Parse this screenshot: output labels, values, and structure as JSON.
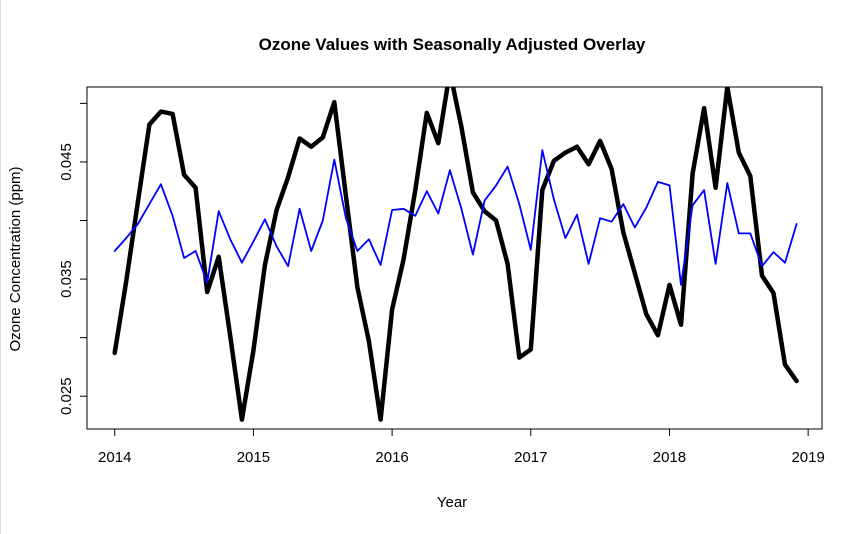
{
  "chart_data": {
    "type": "line",
    "title": "Ozone Values with Seasonally Adjusted Overlay",
    "xlabel": "Year",
    "ylabel": "Ozone Concentration (ppm)",
    "xlim": [
      2013.8,
      2019.1
    ],
    "ylim": [
      0.0222,
      0.0514
    ],
    "x_ticks": [
      2014,
      2015,
      2016,
      2017,
      2018,
      2019
    ],
    "x_tick_labels": [
      "2014",
      "2015",
      "2016",
      "2017",
      "2018",
      "2019"
    ],
    "y_ticks": [
      0.025,
      0.03,
      0.035,
      0.04,
      0.045,
      0.05
    ],
    "y_tick_labels": [
      "0.025",
      "",
      "0.035",
      "",
      "0.045",
      ""
    ],
    "grid": false,
    "x": [
      2014.0,
      2014.083,
      2014.167,
      2014.25,
      2014.333,
      2014.417,
      2014.5,
      2014.583,
      2014.667,
      2014.75,
      2014.833,
      2014.917,
      2015.0,
      2015.083,
      2015.167,
      2015.25,
      2015.333,
      2015.417,
      2015.5,
      2015.583,
      2015.667,
      2015.75,
      2015.833,
      2015.917,
      2016.0,
      2016.083,
      2016.167,
      2016.25,
      2016.333,
      2016.417,
      2016.5,
      2016.583,
      2016.667,
      2016.75,
      2016.833,
      2016.917,
      2017.0,
      2017.083,
      2017.167,
      2017.25,
      2017.333,
      2017.417,
      2017.5,
      2017.583,
      2017.667,
      2017.75,
      2017.833,
      2017.917,
      2018.0,
      2018.083,
      2018.167,
      2018.25,
      2018.333,
      2018.417,
      2018.5,
      2018.583,
      2018.667,
      2018.75,
      2018.833,
      2018.917
    ],
    "series": [
      {
        "color": "#000000",
        "width": 4.5,
        "values": [
          0.0287,
          0.0348,
          0.0416,
          0.0482,
          0.0493,
          0.0491,
          0.0439,
          0.0428,
          0.0339,
          0.0369,
          0.0301,
          0.023,
          0.0289,
          0.0362,
          0.0409,
          0.0437,
          0.047,
          0.0463,
          0.0471,
          0.0501,
          0.0421,
          0.0343,
          0.0297,
          0.023,
          0.0324,
          0.0367,
          0.0426,
          0.0492,
          0.0466,
          0.0527,
          0.048,
          0.0424,
          0.0408,
          0.04,
          0.0363,
          0.0283,
          0.029,
          0.0426,
          0.0451,
          0.0458,
          0.0463,
          0.0448,
          0.0468,
          0.0444,
          0.039,
          0.0355,
          0.032,
          0.0302,
          0.0345,
          0.0311,
          0.044,
          0.0496,
          0.0428,
          0.0514,
          0.0458,
          0.0438,
          0.0353,
          0.0338,
          0.0277,
          0.0263
        ]
      },
      {
        "color": "#0000ff",
        "width": 1.8,
        "values": [
          0.0374,
          0.0385,
          0.0397,
          0.0414,
          0.0431,
          0.0404,
          0.0368,
          0.0374,
          0.0347,
          0.0408,
          0.0384,
          0.0364,
          0.0382,
          0.0401,
          0.0378,
          0.0361,
          0.041,
          0.0374,
          0.04,
          0.0452,
          0.0402,
          0.0374,
          0.0384,
          0.0362,
          0.0409,
          0.041,
          0.0404,
          0.0425,
          0.0406,
          0.0443,
          0.041,
          0.0371,
          0.0417,
          0.043,
          0.0446,
          0.0414,
          0.0375,
          0.046,
          0.0418,
          0.0385,
          0.0405,
          0.0363,
          0.0402,
          0.0399,
          0.0414,
          0.0394,
          0.0411,
          0.0433,
          0.043,
          0.0345,
          0.0413,
          0.0426,
          0.0363,
          0.0432,
          0.0389,
          0.0389,
          0.0361,
          0.0373,
          0.0364,
          0.0397
        ]
      }
    ]
  }
}
